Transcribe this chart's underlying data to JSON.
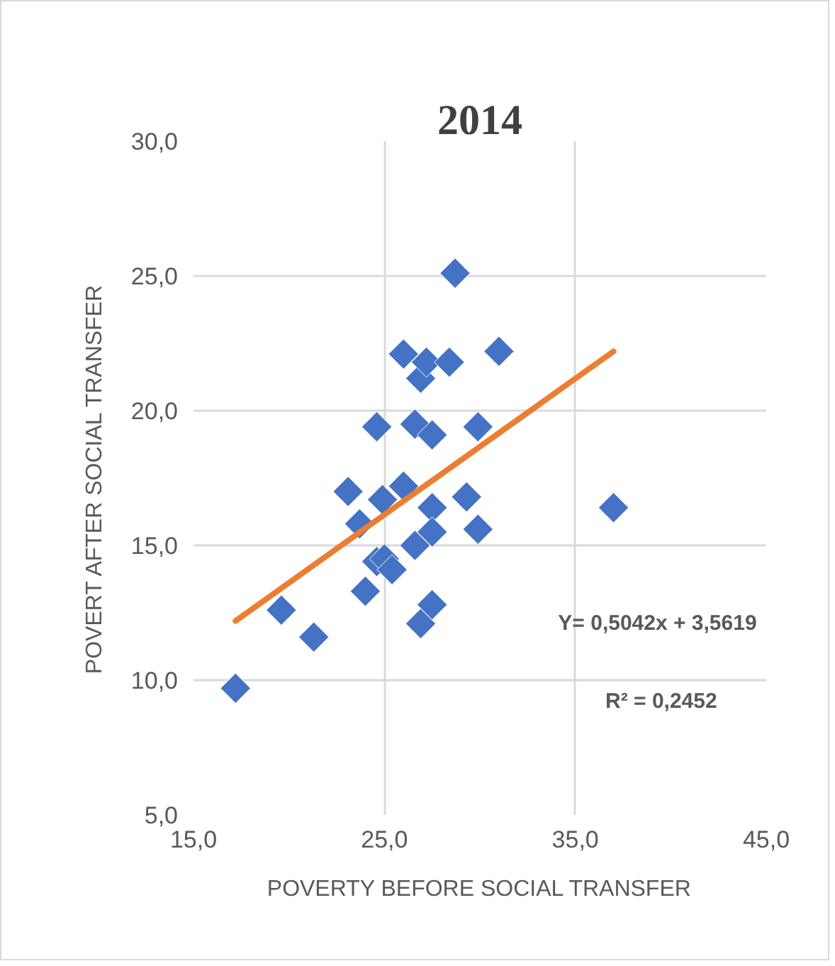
{
  "chart_data": {
    "type": "scatter",
    "title": "2014",
    "xlabel": "POVERTY BEFORE SOCIAL TRANSFER",
    "ylabel": "POVERT AFTER SOCIAL TRANSFER",
    "x": [
      17.2,
      19.6,
      21.3,
      23.1,
      23.7,
      24.0,
      24.6,
      24.6,
      25.0,
      24.9,
      25.4,
      26.0,
      26.0,
      26.6,
      26.6,
      26.9,
      26.9,
      27.2,
      27.5,
      27.5,
      27.5,
      27.5,
      28.4,
      28.7,
      29.3,
      29.9,
      29.9,
      31.0,
      37.0
    ],
    "series": [
      {
        "color": "#4472c4",
        "values": [
          9.7,
          12.6,
          11.6,
          17.0,
          15.8,
          13.3,
          19.4,
          14.4,
          14.5,
          16.7,
          14.1,
          22.1,
          17.2,
          19.5,
          15.0,
          21.2,
          12.1,
          21.8,
          19.1,
          16.4,
          15.5,
          12.8,
          21.8,
          25.1,
          16.8,
          19.4,
          15.6,
          22.2,
          16.4
        ]
      },
      {
        "type": "line",
        "marker": "none",
        "color": "#ed7d31",
        "x": [
          17.2,
          37.0
        ],
        "values": [
          12.2,
          22.2
        ]
      }
    ],
    "marker": "diamond",
    "grid": true,
    "xlim": [
      15,
      45
    ],
    "xticks": [
      {
        "value": 15,
        "label": "15,0"
      },
      {
        "value": 25,
        "label": "25,0"
      },
      {
        "value": 35,
        "label": "35,0"
      },
      {
        "value": 45,
        "label": "45,0"
      }
    ],
    "ylim": [
      5,
      30
    ],
    "yticks": [
      {
        "value": 5,
        "label": "5,0"
      },
      {
        "value": 10,
        "label": "10,0"
      },
      {
        "value": 15,
        "label": "15,0"
      },
      {
        "value": 20,
        "label": "20,0"
      },
      {
        "value": 25,
        "label": "25,0"
      },
      {
        "value": 30,
        "label": "30,0"
      }
    ],
    "annotations": [
      "Y= 0,5042x + 3,5619",
      "R² = 0,2452"
    ]
  }
}
